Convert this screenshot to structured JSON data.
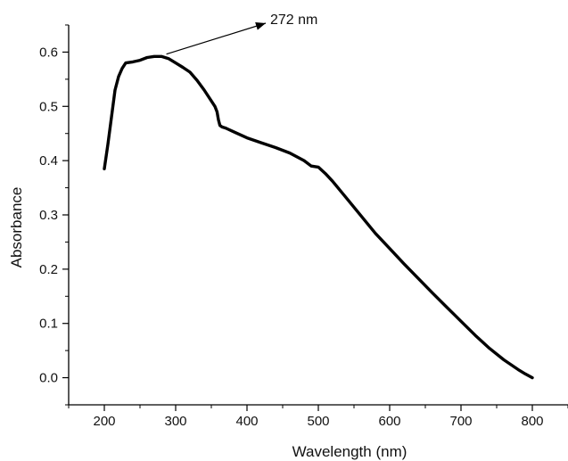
{
  "chart_data": {
    "type": "line",
    "title": "",
    "xlabel": "Wavelength (nm)",
    "ylabel": "Absorbance",
    "xlim": [
      150,
      850
    ],
    "ylim": [
      -0.05,
      0.65
    ],
    "xticks": [
      200,
      300,
      400,
      500,
      600,
      700,
      800
    ],
    "yticks": [
      0.0,
      0.1,
      0.2,
      0.3,
      0.4,
      0.5,
      0.6
    ],
    "xtick_labels": [
      "200",
      "300",
      "400",
      "500",
      "600",
      "700",
      "800"
    ],
    "ytick_labels": [
      "0.0",
      "0.1",
      "0.2",
      "0.3",
      "0.4",
      "0.5",
      "0.6"
    ],
    "grid": false,
    "legend": "none",
    "line_color": "#000000",
    "annotation": {
      "text": "272 nm",
      "points_to_x": 272,
      "points_to_y": 0.593
    },
    "series": [
      {
        "x": [
          200,
          205,
          210,
          215,
          220,
          225,
          230,
          240,
          250,
          260,
          270,
          280,
          290,
          300,
          310,
          320,
          330,
          340,
          350,
          355,
          358,
          360,
          362,
          365,
          370,
          380,
          400,
          420,
          440,
          460,
          480,
          490,
          500,
          510,
          520,
          540,
          560,
          580,
          600,
          620,
          640,
          660,
          680,
          700,
          720,
          740,
          760,
          780,
          790,
          800
        ],
        "y": [
          0.385,
          0.43,
          0.48,
          0.53,
          0.555,
          0.57,
          0.58,
          0.582,
          0.585,
          0.59,
          0.592,
          0.592,
          0.588,
          0.58,
          0.572,
          0.563,
          0.548,
          0.53,
          0.51,
          0.5,
          0.49,
          0.475,
          0.465,
          0.462,
          0.46,
          0.454,
          0.442,
          0.433,
          0.424,
          0.414,
          0.4,
          0.39,
          0.388,
          0.376,
          0.362,
          0.33,
          0.298,
          0.266,
          0.238,
          0.21,
          0.183,
          0.156,
          0.13,
          0.104,
          0.078,
          0.054,
          0.033,
          0.015,
          0.007,
          0.0
        ]
      }
    ]
  }
}
